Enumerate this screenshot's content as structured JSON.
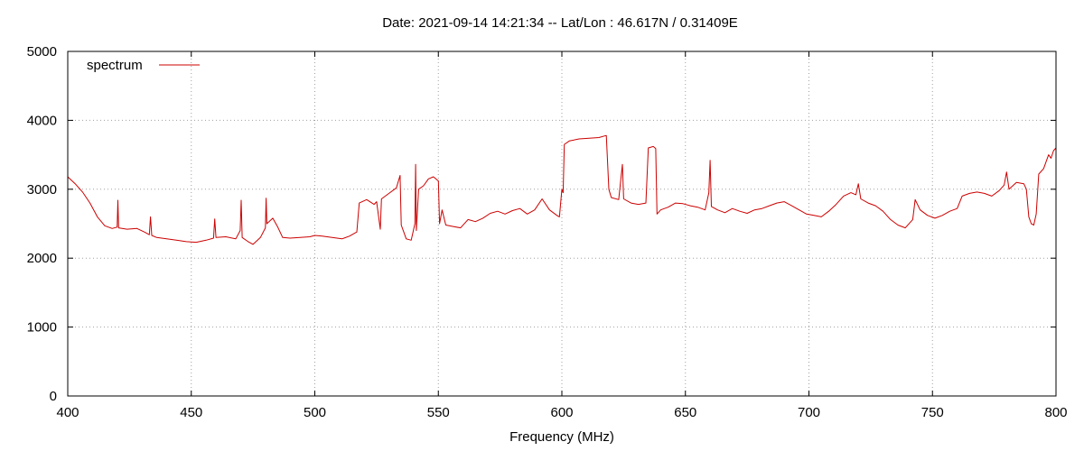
{
  "chart_data": {
    "type": "line",
    "title": "Date: 2021-09-14 14:21:34  --  Lat/Lon : 46.617N / 0.31409E",
    "xlabel": "Frequency (MHz)",
    "ylabel": "",
    "xlim": [
      400,
      800
    ],
    "ylim": [
      0,
      5000
    ],
    "x_ticks": [
      400,
      450,
      500,
      550,
      600,
      650,
      700,
      750,
      800
    ],
    "y_ticks": [
      0,
      1000,
      2000,
      3000,
      4000,
      5000
    ],
    "grid": true,
    "legend": "top-left",
    "series": [
      {
        "name": "spectrum",
        "color": "#cc0000",
        "points": [
          [
            400,
            3180
          ],
          [
            403,
            3080
          ],
          [
            406,
            2960
          ],
          [
            409,
            2800
          ],
          [
            412,
            2600
          ],
          [
            415,
            2470
          ],
          [
            418,
            2430
          ],
          [
            420,
            2450
          ],
          [
            420.3,
            2840
          ],
          [
            420.6,
            2440
          ],
          [
            424,
            2420
          ],
          [
            428,
            2430
          ],
          [
            431,
            2380
          ],
          [
            433,
            2340
          ],
          [
            433.5,
            2600
          ],
          [
            434,
            2330
          ],
          [
            436,
            2300
          ],
          [
            440,
            2280
          ],
          [
            444,
            2260
          ],
          [
            448,
            2240
          ],
          [
            452,
            2230
          ],
          [
            456,
            2260
          ],
          [
            459,
            2290
          ],
          [
            459.5,
            2570
          ],
          [
            460,
            2300
          ],
          [
            464,
            2310
          ],
          [
            468,
            2280
          ],
          [
            469.8,
            2400
          ],
          [
            470.2,
            2840
          ],
          [
            470.6,
            2300
          ],
          [
            473,
            2240
          ],
          [
            475,
            2200
          ],
          [
            478,
            2300
          ],
          [
            480,
            2440
          ],
          [
            480.3,
            2870
          ],
          [
            480.6,
            2500
          ],
          [
            483,
            2580
          ],
          [
            485,
            2450
          ],
          [
            487,
            2300
          ],
          [
            490,
            2290
          ],
          [
            494,
            2300
          ],
          [
            498,
            2310
          ],
          [
            500,
            2330
          ],
          [
            503,
            2320
          ],
          [
            507,
            2300
          ],
          [
            511,
            2280
          ],
          [
            514,
            2320
          ],
          [
            517,
            2380
          ],
          [
            518,
            2800
          ],
          [
            521,
            2850
          ],
          [
            524,
            2780
          ],
          [
            525,
            2820
          ],
          [
            526.5,
            2420
          ],
          [
            527,
            2860
          ],
          [
            530,
            2940
          ],
          [
            533,
            3020
          ],
          [
            534.5,
            3200
          ],
          [
            535,
            2480
          ],
          [
            537,
            2280
          ],
          [
            539,
            2260
          ],
          [
            540.5,
            2500
          ],
          [
            540.8,
            3360
          ],
          [
            541.1,
            2400
          ],
          [
            542,
            3000
          ],
          [
            544,
            3050
          ],
          [
            546,
            3150
          ],
          [
            548,
            3180
          ],
          [
            550,
            3120
          ],
          [
            550.5,
            2500
          ],
          [
            551.5,
            2700
          ],
          [
            553,
            2480
          ],
          [
            556,
            2460
          ],
          [
            559,
            2440
          ],
          [
            562,
            2560
          ],
          [
            565,
            2530
          ],
          [
            568,
            2580
          ],
          [
            571,
            2650
          ],
          [
            574,
            2680
          ],
          [
            577,
            2640
          ],
          [
            580,
            2690
          ],
          [
            583,
            2720
          ],
          [
            586,
            2640
          ],
          [
            589,
            2700
          ],
          [
            592,
            2860
          ],
          [
            595,
            2700
          ],
          [
            598,
            2620
          ],
          [
            599,
            2600
          ],
          [
            600,
            3000
          ],
          [
            600.5,
            2950
          ],
          [
            601,
            3650
          ],
          [
            603,
            3700
          ],
          [
            607,
            3730
          ],
          [
            611,
            3740
          ],
          [
            615,
            3750
          ],
          [
            618,
            3780
          ],
          [
            619,
            3000
          ],
          [
            620,
            2880
          ],
          [
            623,
            2850
          ],
          [
            624.5,
            3360
          ],
          [
            625,
            2860
          ],
          [
            628,
            2800
          ],
          [
            631,
            2780
          ],
          [
            634,
            2800
          ],
          [
            635,
            3600
          ],
          [
            637,
            3620
          ],
          [
            638,
            3590
          ],
          [
            638.5,
            2640
          ],
          [
            640,
            2700
          ],
          [
            643,
            2740
          ],
          [
            646,
            2800
          ],
          [
            649,
            2790
          ],
          [
            652,
            2760
          ],
          [
            655,
            2740
          ],
          [
            658,
            2700
          ],
          [
            659.5,
            2950
          ],
          [
            660,
            3420
          ],
          [
            660.5,
            2750
          ],
          [
            663,
            2700
          ],
          [
            666,
            2660
          ],
          [
            669,
            2720
          ],
          [
            672,
            2680
          ],
          [
            675,
            2650
          ],
          [
            678,
            2700
          ],
          [
            681,
            2720
          ],
          [
            684,
            2760
          ],
          [
            687,
            2800
          ],
          [
            690,
            2820
          ],
          [
            693,
            2760
          ],
          [
            696,
            2700
          ],
          [
            699,
            2640
          ],
          [
            702,
            2620
          ],
          [
            705,
            2600
          ],
          [
            708,
            2680
          ],
          [
            711,
            2780
          ],
          [
            714,
            2900
          ],
          [
            717,
            2950
          ],
          [
            719,
            2920
          ],
          [
            720,
            3080
          ],
          [
            721,
            2860
          ],
          [
            724,
            2800
          ],
          [
            727,
            2760
          ],
          [
            730,
            2680
          ],
          [
            733,
            2560
          ],
          [
            736,
            2480
          ],
          [
            739,
            2440
          ],
          [
            742,
            2560
          ],
          [
            743,
            2850
          ],
          [
            745,
            2700
          ],
          [
            748,
            2620
          ],
          [
            751,
            2580
          ],
          [
            754,
            2620
          ],
          [
            757,
            2680
          ],
          [
            760,
            2720
          ],
          [
            762,
            2900
          ],
          [
            765,
            2940
          ],
          [
            768,
            2960
          ],
          [
            771,
            2940
          ],
          [
            774,
            2900
          ],
          [
            777,
            2980
          ],
          [
            779,
            3060
          ],
          [
            780,
            3250
          ],
          [
            781,
            3000
          ],
          [
            784,
            3100
          ],
          [
            787,
            3080
          ],
          [
            788,
            3000
          ],
          [
            789,
            2600
          ],
          [
            790,
            2500
          ],
          [
            791,
            2480
          ],
          [
            792,
            2640
          ],
          [
            793,
            3220
          ],
          [
            795,
            3300
          ],
          [
            797,
            3500
          ],
          [
            798,
            3450
          ],
          [
            799,
            3560
          ],
          [
            800,
            3600
          ]
        ]
      }
    ]
  }
}
